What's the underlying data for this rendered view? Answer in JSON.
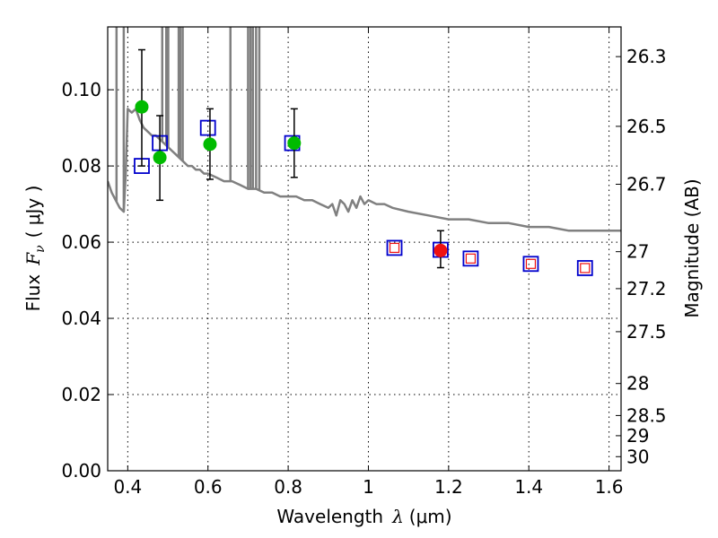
{
  "chart_data": {
    "type": "scatter",
    "title": "",
    "xlabel": "Wavelength",
    "xlabel_math": "λ",
    "xlabel_unit": "(μm)",
    "ylabel": "Flux",
    "ylabel_math": "F",
    "ylabel_sub": "ν",
    "ylabel_unit": "( μJy )",
    "ylabel_right": "Magnitude (AB)",
    "xlim": [
      0.35,
      1.63
    ],
    "ylim": [
      0.0,
      0.1165
    ],
    "grid": true,
    "x_ticks": [
      {
        "value": 0.4,
        "label": "0.4"
      },
      {
        "value": 0.6,
        "label": "0.6"
      },
      {
        "value": 0.8,
        "label": "0.8"
      },
      {
        "value": 1.0,
        "label": "1"
      },
      {
        "value": 1.2,
        "label": "1.2"
      },
      {
        "value": 1.4,
        "label": "1.4"
      },
      {
        "value": 1.6,
        "label": "1.6"
      }
    ],
    "y_ticks": [
      {
        "value": 0.0,
        "label": "0.00"
      },
      {
        "value": 0.02,
        "label": "0.02"
      },
      {
        "value": 0.04,
        "label": "0.04"
      },
      {
        "value": 0.06,
        "label": "0.06"
      },
      {
        "value": 0.08,
        "label": "0.08"
      },
      {
        "value": 0.1,
        "label": "0.10"
      }
    ],
    "right_ticks": [
      {
        "flux": 0.1087,
        "label": "26.3"
      },
      {
        "flux": 0.0904,
        "label": "26.5"
      },
      {
        "flux": 0.0752,
        "label": "26.7"
      },
      {
        "flux": 0.0575,
        "label": "27"
      },
      {
        "flux": 0.0478,
        "label": "27.2"
      },
      {
        "flux": 0.0365,
        "label": "27.5"
      },
      {
        "flux": 0.0229,
        "label": "28"
      },
      {
        "flux": 0.0145,
        "label": "28.5"
      },
      {
        "flux": 0.0092,
        "label": "29"
      },
      {
        "flux": 0.0037,
        "label": "30"
      }
    ],
    "colors": {
      "model": "#808080",
      "observed": "#00bb00",
      "observed_nir": "#ee1111",
      "model_box": "#0000cc",
      "model_box_nir_inner": "#ee1111",
      "errorbar": "#000000"
    },
    "series": [
      {
        "name": "model_sed",
        "kind": "line",
        "x": [
          0.35,
          0.36,
          0.37,
          0.38,
          0.39,
          0.395,
          0.4,
          0.41,
          0.42,
          0.43,
          0.44,
          0.45,
          0.46,
          0.47,
          0.48,
          0.49,
          0.5,
          0.51,
          0.52,
          0.53,
          0.54,
          0.55,
          0.56,
          0.57,
          0.58,
          0.59,
          0.6,
          0.62,
          0.64,
          0.66,
          0.68,
          0.7,
          0.72,
          0.74,
          0.76,
          0.78,
          0.8,
          0.82,
          0.84,
          0.86,
          0.88,
          0.9,
          0.91,
          0.92,
          0.93,
          0.94,
          0.95,
          0.96,
          0.97,
          0.98,
          0.99,
          1.0,
          1.02,
          1.04,
          1.06,
          1.1,
          1.15,
          1.2,
          1.25,
          1.3,
          1.35,
          1.4,
          1.45,
          1.5,
          1.55,
          1.6,
          1.63
        ],
        "y": [
          0.076,
          0.073,
          0.071,
          0.069,
          0.068,
          0.078,
          0.095,
          0.094,
          0.095,
          0.092,
          0.09,
          0.089,
          0.088,
          0.088,
          0.087,
          0.086,
          0.085,
          0.084,
          0.083,
          0.082,
          0.081,
          0.08,
          0.08,
          0.079,
          0.079,
          0.078,
          0.078,
          0.077,
          0.076,
          0.076,
          0.075,
          0.074,
          0.074,
          0.073,
          0.073,
          0.072,
          0.072,
          0.072,
          0.071,
          0.071,
          0.07,
          0.069,
          0.07,
          0.067,
          0.071,
          0.07,
          0.068,
          0.071,
          0.069,
          0.072,
          0.07,
          0.071,
          0.07,
          0.07,
          0.069,
          0.068,
          0.067,
          0.066,
          0.066,
          0.065,
          0.065,
          0.064,
          0.064,
          0.063,
          0.063,
          0.063,
          0.063
        ],
        "emission_lines": [
          0.372,
          0.39,
          0.486,
          0.496,
          0.501,
          0.527,
          0.531,
          0.537,
          0.656,
          0.7,
          0.706,
          0.712,
          0.72,
          0.728
        ]
      },
      {
        "name": "model_fluxes",
        "kind": "square-marker",
        "x": [
          0.435,
          0.48,
          0.6,
          0.81,
          1.065,
          1.18,
          1.255,
          1.405,
          1.54
        ],
        "y": [
          0.08,
          0.086,
          0.09,
          0.086,
          0.0585,
          0.058,
          0.0557,
          0.0543,
          0.0532
        ],
        "red_inner": [
          false,
          false,
          false,
          false,
          true,
          false,
          true,
          true,
          true
        ]
      },
      {
        "name": "observed_optical",
        "kind": "errorbar",
        "x": [
          0.435,
          0.48,
          0.605,
          0.815
        ],
        "y": [
          0.0955,
          0.0822,
          0.0857,
          0.086
        ],
        "err_low": [
          0.0155,
          0.0112,
          0.0092,
          0.009
        ],
        "err_high": [
          0.015,
          0.011,
          0.0093,
          0.009
        ]
      },
      {
        "name": "observed_nir",
        "kind": "errorbar",
        "x": [
          1.18
        ],
        "y": [
          0.0578
        ],
        "err_low": [
          0.0045
        ],
        "err_high": [
          0.0052
        ]
      }
    ]
  }
}
